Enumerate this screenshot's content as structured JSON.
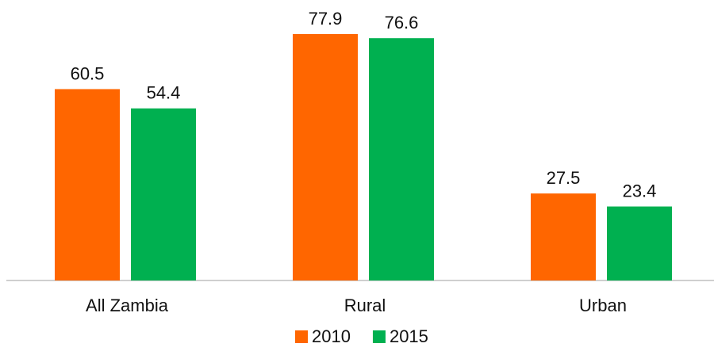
{
  "chart_data": {
    "type": "bar",
    "categories": [
      "All Zambia",
      "Rural",
      "Urban"
    ],
    "series": [
      {
        "name": "2010",
        "color": "#ff6600",
        "values": [
          60.5,
          77.9,
          27.5
        ]
      },
      {
        "name": "2015",
        "color": "#00b050",
        "values": [
          54.4,
          76.6,
          23.4
        ]
      }
    ],
    "legend": "bottom"
  }
}
